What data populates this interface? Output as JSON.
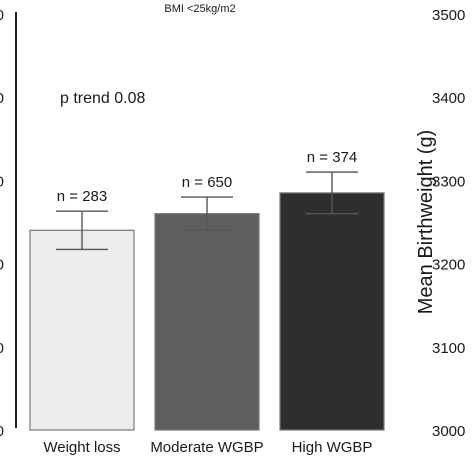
{
  "chart_data": {
    "type": "bar",
    "title": "BMI <25kg/m2",
    "annotation": "p trend 0.08",
    "ylabel": "Mean Birthweight (g)",
    "ylim": [
      3000,
      3500
    ],
    "left_ticks": [
      "0",
      "0",
      "0",
      "0",
      "0",
      "0"
    ],
    "right_ticks": [
      "3000",
      "3100",
      "3200",
      "3300",
      "3400",
      "3500"
    ],
    "right_tick_values": [
      3000,
      3100,
      3200,
      3300,
      3400,
      3500
    ],
    "categories": [
      "Weight loss",
      "Moderate WGBP",
      "High WGBP"
    ],
    "values": [
      3240,
      3260,
      3285
    ],
    "error_low": [
      3217,
      3240,
      3260
    ],
    "error_high": [
      3263,
      3280,
      3310
    ],
    "n_labels": [
      "n = 283",
      "n = 650",
      "n = 374"
    ],
    "colors": {
      "bar_fill": [
        "#ececec",
        "#5f5f5f",
        "#2e2e2e"
      ],
      "bar_stroke": "#777777",
      "error": "#555555",
      "axis": "#222222"
    }
  }
}
